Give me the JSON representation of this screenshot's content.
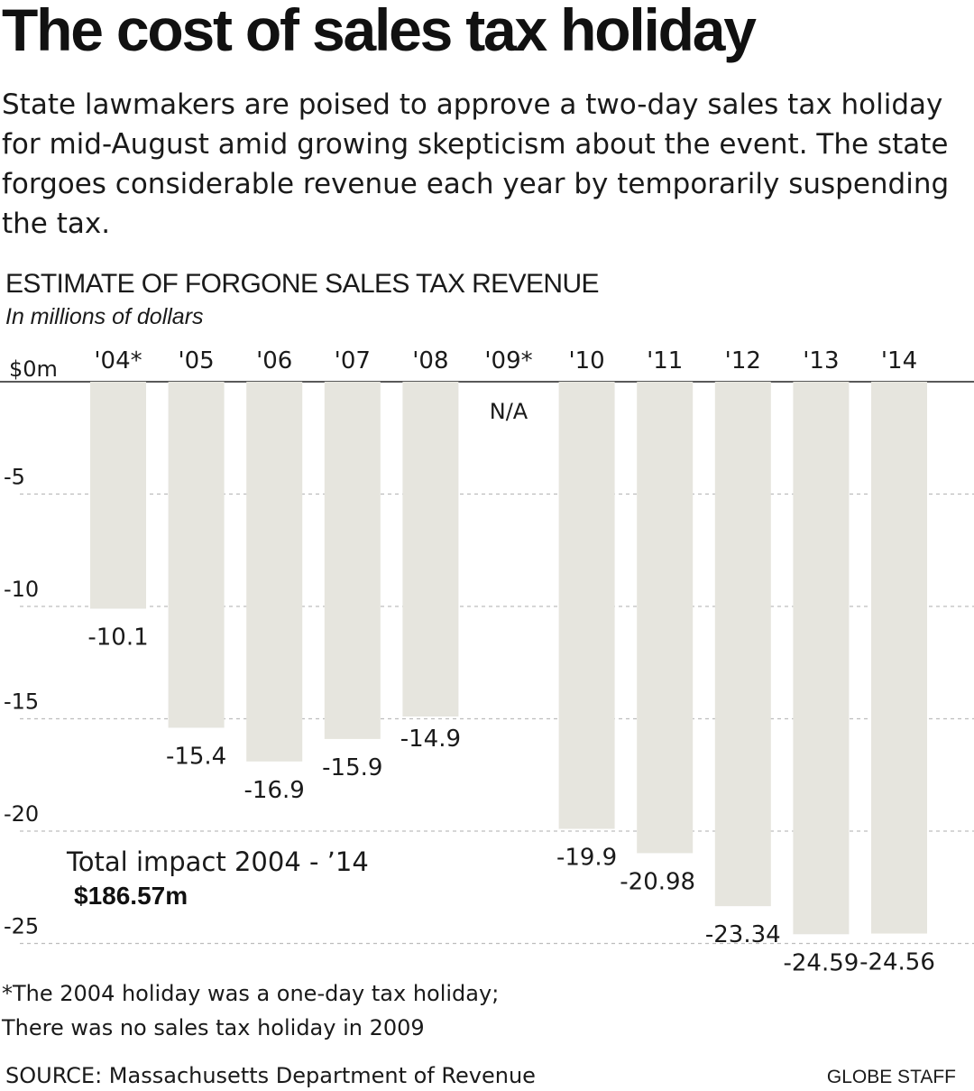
{
  "headline": "The cost of sales tax holiday",
  "dek": "State lawmakers are poised to approve a two-day sales tax holiday for mid-August amid growing skepticism about the event. The state forgoes considerable revenue each year by temporarily suspending the tax.",
  "footnote": {
    "line1": "*The 2004 holiday was a one-day tax holiday;",
    "line2": "There was no sales tax holiday in 2009"
  },
  "source": "SOURCE: Massachusetts Department of Revenue",
  "credit": "GLOBE STAFF",
  "colors": {
    "bar": "#e6e5de",
    "text": "#1a1a1a",
    "gridline": "#bdbdbd",
    "baseline": "#222222"
  },
  "chart_data": {
    "type": "bar",
    "title": "ESTIMATE OF FORGONE SALES TAX REVENUE",
    "subtitle": "In millions of dollars",
    "categories": [
      "'04*",
      "'05",
      "'06",
      "'07",
      "'08",
      "'09*",
      "'10",
      "'11",
      "'12",
      "'13",
      "'14"
    ],
    "values": [
      -10.1,
      -15.4,
      -16.9,
      -15.9,
      -14.9,
      null,
      -19.9,
      -20.98,
      -23.34,
      -24.59,
      -24.56
    ],
    "value_labels": [
      "-10.1",
      "-15.4",
      "-16.9",
      "-15.9",
      "-14.9",
      "N/A",
      "-19.9",
      "-20.98",
      "-23.34",
      "-24.59",
      "-24.56"
    ],
    "yticks": [
      0,
      -5,
      -10,
      -15,
      -20,
      -25
    ],
    "ytick_labels": [
      "$0m",
      "-5",
      "-10",
      "-15",
      "-20",
      "-25"
    ],
    "ylim": [
      -25,
      0
    ],
    "grid": true,
    "annotation": {
      "label": "Total impact 2004 - ’14",
      "value": "$186.57m"
    }
  }
}
